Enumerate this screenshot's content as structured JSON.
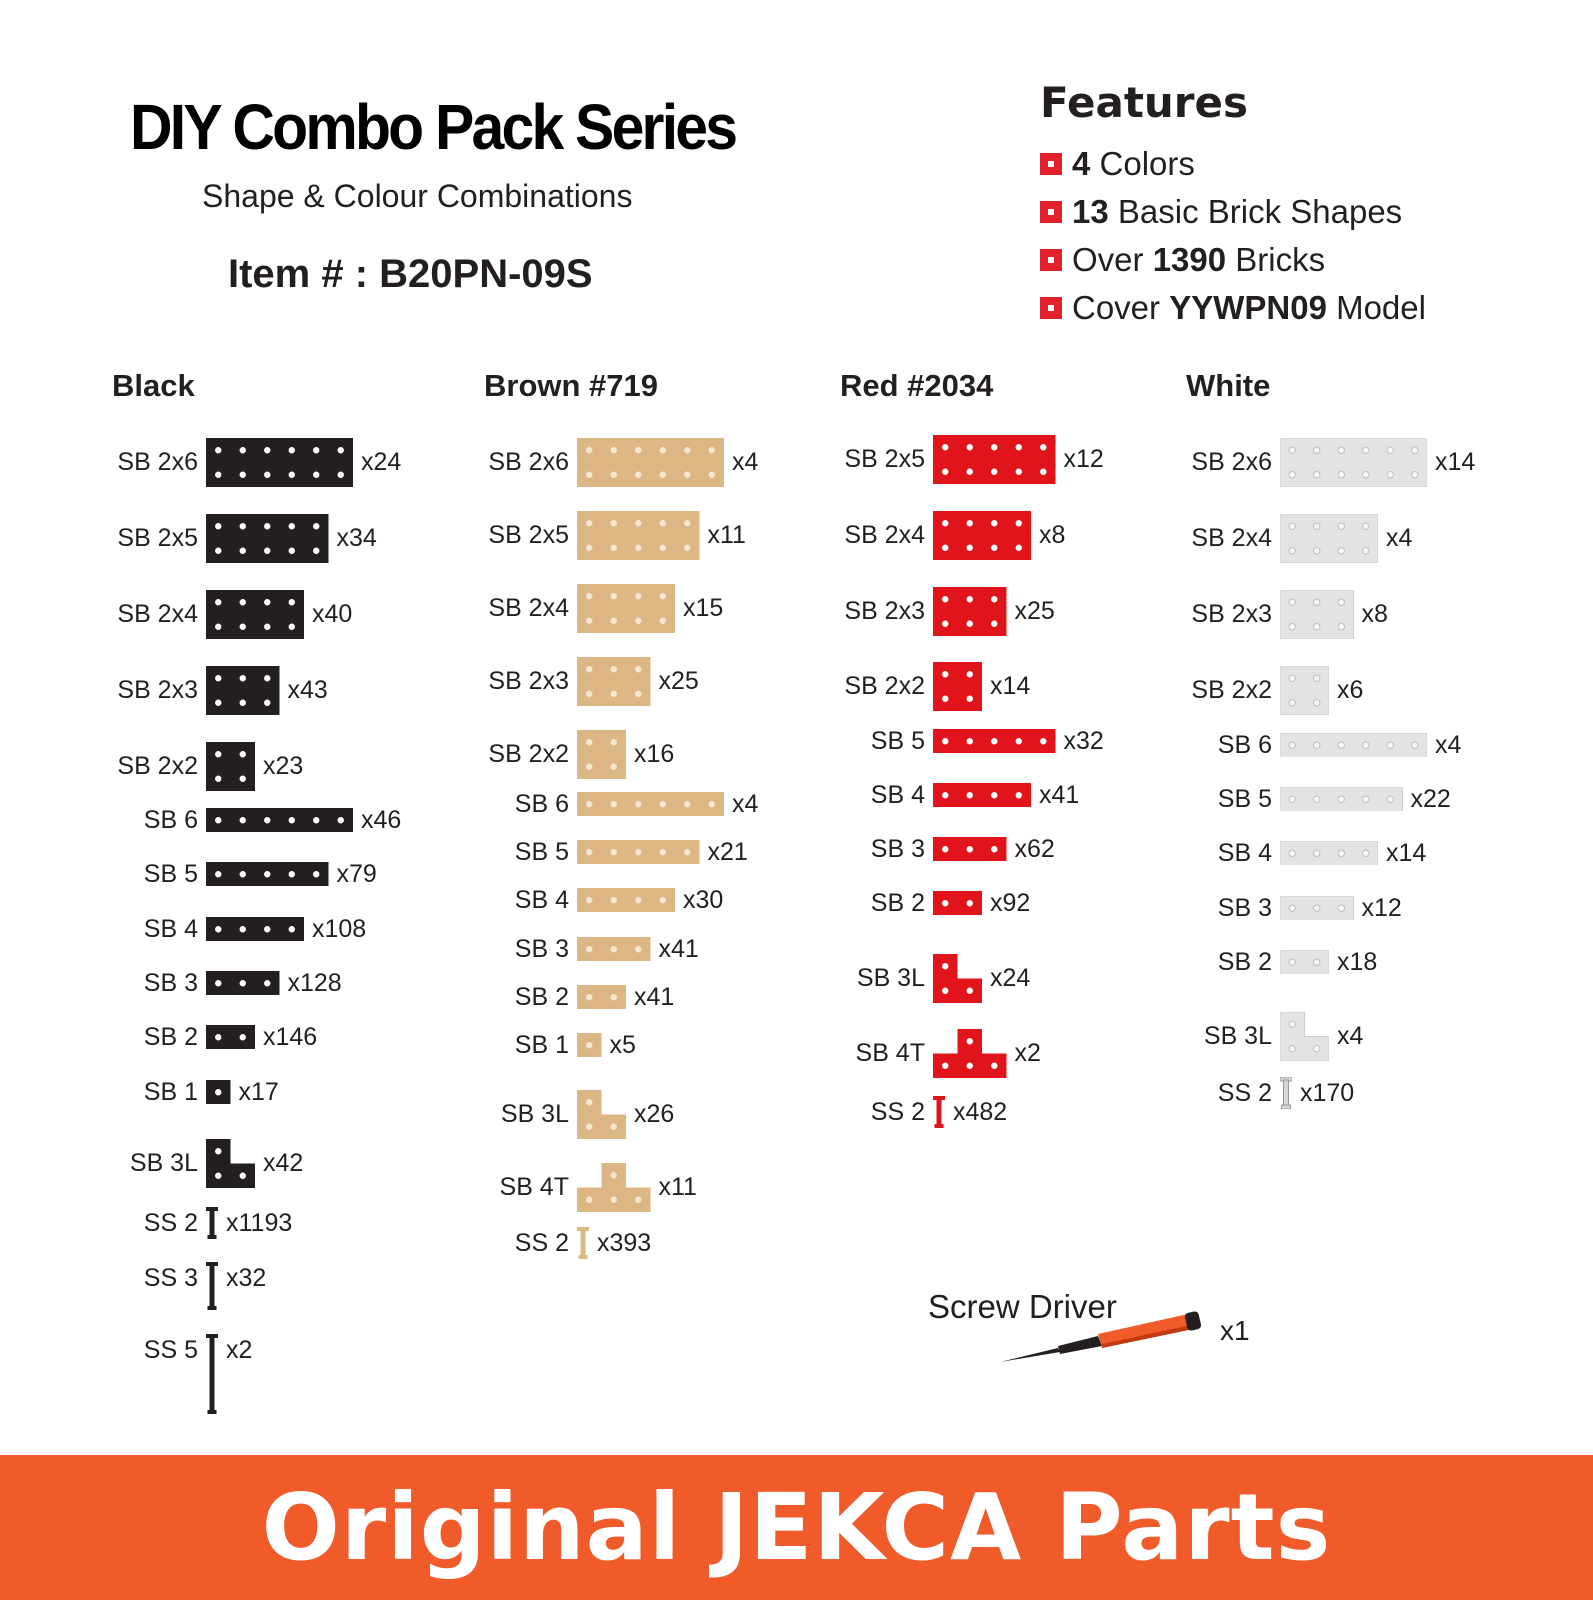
{
  "header": {
    "title": "DIY Combo Pack Series",
    "subtitle": "Shape & Colour Combinations",
    "item_number": "Item # : B20PN-09S"
  },
  "features": {
    "title": "Features",
    "bullet_color": "#e1202a",
    "items": [
      {
        "pre": "",
        "bold": "4",
        "post": " Colors"
      },
      {
        "pre": "",
        "bold": "13",
        "post": " Basic Brick Shapes"
      },
      {
        "pre": "Over ",
        "bold": "1390",
        "post": " Bricks"
      },
      {
        "pre": "Cover ",
        "bold": "YYWPN09",
        "post": " Model"
      }
    ]
  },
  "columns": [
    {
      "title": "Black",
      "fill": "#231f20",
      "hole": "#ffffff",
      "parts": [
        {
          "label": "SB 2x6",
          "qty": "x24"
        },
        {
          "label": "SB 2x5",
          "qty": "x34"
        },
        {
          "label": "SB 2x4",
          "qty": "x40"
        },
        {
          "label": "SB 2x3",
          "qty": "x43"
        },
        {
          "label": "SB 2x2",
          "qty": "x23"
        },
        {
          "label": "SB 6",
          "qty": "x46"
        },
        {
          "label": "SB 5",
          "qty": "x79"
        },
        {
          "label": "SB 4",
          "qty": "x108"
        },
        {
          "label": "SB 3",
          "qty": "x128"
        },
        {
          "label": "SB 2",
          "qty": "x146"
        },
        {
          "label": "SB 1",
          "qty": "x17"
        },
        {
          "label": "SB 3L",
          "qty": "x42"
        },
        {
          "label": "SS 2",
          "qty": "x1193"
        },
        {
          "label": "SS 3",
          "qty": "x32"
        },
        {
          "label": "SS 5",
          "qty": "x2"
        }
      ]
    },
    {
      "title": "Brown #719",
      "fill": "#dcb784",
      "hole": "#f4e7d2",
      "parts": [
        {
          "label": "SB 2x6",
          "qty": "x4"
        },
        {
          "label": "SB 2x5",
          "qty": "x11"
        },
        {
          "label": "SB 2x4",
          "qty": "x15"
        },
        {
          "label": "SB 2x3",
          "qty": "x25"
        },
        {
          "label": "SB 2x2",
          "qty": "x16"
        },
        {
          "label": "SB 6",
          "qty": "x4"
        },
        {
          "label": "SB 5",
          "qty": "x21"
        },
        {
          "label": "SB 4",
          "qty": "x30"
        },
        {
          "label": "SB 3",
          "qty": "x41"
        },
        {
          "label": "SB 2",
          "qty": "x41"
        },
        {
          "label": "SB 1",
          "qty": "x5"
        },
        {
          "label": "SB 3L",
          "qty": "x26"
        },
        {
          "label": "SB 4T",
          "qty": "x11"
        },
        {
          "label": "SS 2",
          "qty": "x393"
        }
      ]
    },
    {
      "title": "Red #2034",
      "fill": "#e1141b",
      "hole": "#ffffff",
      "parts": [
        {
          "label": "SB 2x5",
          "qty": "x12"
        },
        {
          "label": "SB 2x4",
          "qty": "x8"
        },
        {
          "label": "SB 2x3",
          "qty": "x25"
        },
        {
          "label": "SB 2x2",
          "qty": "x14"
        },
        {
          "label": "SB 5",
          "qty": "x32"
        },
        {
          "label": "SB 4",
          "qty": "x41"
        },
        {
          "label": "SB 3",
          "qty": "x62"
        },
        {
          "label": "SB 2",
          "qty": "x92"
        },
        {
          "label": "SB 3L",
          "qty": "x24"
        },
        {
          "label": "SB 4T",
          "qty": "x2"
        },
        {
          "label": "SS 2",
          "qty": "x482"
        }
      ]
    },
    {
      "title": "White",
      "fill": "#e3e3e3",
      "hole": "#f7f7f7",
      "parts": [
        {
          "label": "SB 2x6",
          "qty": "x14"
        },
        {
          "label": "SB 2x4",
          "qty": "x4"
        },
        {
          "label": "SB 2x3",
          "qty": "x8"
        },
        {
          "label": "SB 2x2",
          "qty": "x6"
        },
        {
          "label": "SB 6",
          "qty": "x4"
        },
        {
          "label": "SB 5",
          "qty": "x22"
        },
        {
          "label": "SB 4",
          "qty": "x14"
        },
        {
          "label": "SB 3",
          "qty": "x12"
        },
        {
          "label": "SB 2",
          "qty": "x18"
        },
        {
          "label": "SB 3L",
          "qty": "x4"
        },
        {
          "label": "SS 2",
          "qty": "x170"
        }
      ]
    }
  ],
  "screwdriver": {
    "label": "Screw Driver",
    "qty": "x1",
    "icon": "screwdriver-icon",
    "handle_color": "#f15a29"
  },
  "banner": {
    "text": "Original JEKCA Parts",
    "color": "#f15a29"
  }
}
